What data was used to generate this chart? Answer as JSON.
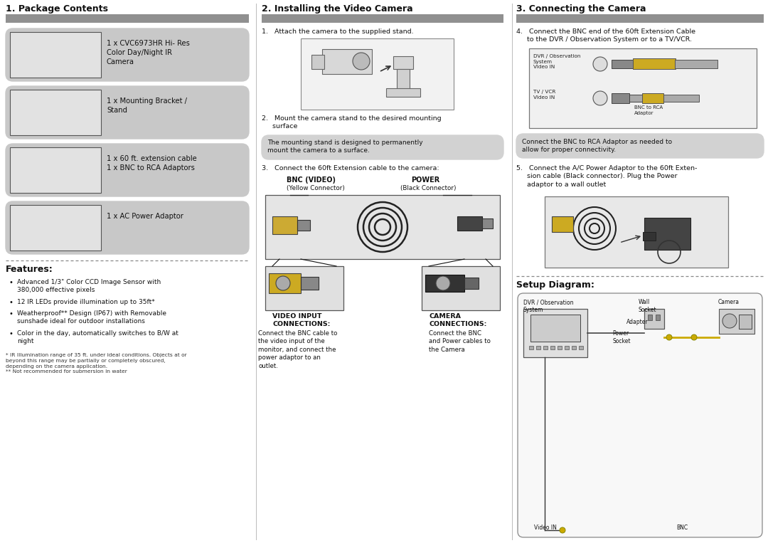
{
  "bg_color": "#ffffff",
  "header_bar_color": "#909090",
  "item_bg_color": "#c8c8c8",
  "note_bg_color": "#d0d0d0",
  "title_font_size": 8.5,
  "body_font_size": 6.8,
  "small_font_size": 5.5,
  "bold_font_size": 7.0,
  "col1_title": "1. Package Contents",
  "col2_title": "2. Installing the Video Camera",
  "col3_title": "3. Connecting the Camera",
  "package_items": [
    "1 x CVC6973HR Hi- Res\nColor Day/Night IR\nCamera",
    "1 x Mounting Bracket /\nStand",
    "1 x 60 ft. extension cable\n1 x BNC to RCA Adaptors",
    "1 x AC Power Adaptor"
  ],
  "features_title": "Features:",
  "features_bullets": [
    "Advanced 1/3\" Color CCD Image Sensor with\n380,000 effective pixels",
    "12 IR LEDs provide illumination up to 35ft*",
    "Weatherproof** Design (IP67) with Removable\nsunshade ideal for outdoor installations",
    "Color in the day, automatically switches to B/W at\nnight"
  ],
  "footnote": "* IR Illumination range of 35 ft. under ideal conditions. Objects at or\nbeyond this range may be partially or completely obscured,\ndepending on the camera application.\n** Not recommended for submersion in water",
  "install_step1": "1.   Attach the camera to the supplied stand.",
  "install_step2": "2.   Mount the camera stand to the desired mounting\n     surface",
  "install_step3": "3.   Connect the 60ft Extension cable to the camera:",
  "install_note": "The mounting stand is designed to permanently\nmount the camera to a surface.",
  "bnc_label": "BNC (VIDEO)",
  "bnc_sub": "(Yellow Connector)",
  "power_label": "POWER",
  "power_sub": "(Black Connector)",
  "video_input_title": "VIDEO INPUT\nCONNECTIONS:",
  "video_input_desc": "Connect the BNC cable to\nthe video input of the\nmonitor, and connect the\npower adaptor to an\noutlet.",
  "camera_conn_title": "CAMERA\nCONNECTIONS:",
  "camera_conn_desc": "Connect the BNC\nand Power cables to\nthe Camera",
  "connect_step4": "4.   Connect the BNC end of the 60ft Extension Cable\n     to the DVR / Observation System or to a TV/VCR.",
  "connect_step5": "5.   Connect the A/C Power Adaptor to the 60ft Exten-\n     sion cable (Black connector). Plug the Power\n     adaptor to a wall outlet",
  "connect_note": "Connect the BNC to RCA Adaptor as needed to\nallow for proper connectivity.",
  "dvr_obs_label": "DVR / Observation\nSystem\nVideo IN",
  "tv_vcr_label": "TV / VCR\nVideo IN",
  "bnc_rca_label": "BNC to RCA\nAdaptor",
  "setup_title": "Setup Diagram:",
  "setup_dvr": "DVR / Observation\nSystem",
  "setup_wall": "Wall\nSocket",
  "setup_camera_lbl": "Camera",
  "setup_adapter": "Adapter",
  "setup_power": "Power\nSocket",
  "setup_videoin": "Video IN",
  "setup_bnc": "BNC"
}
